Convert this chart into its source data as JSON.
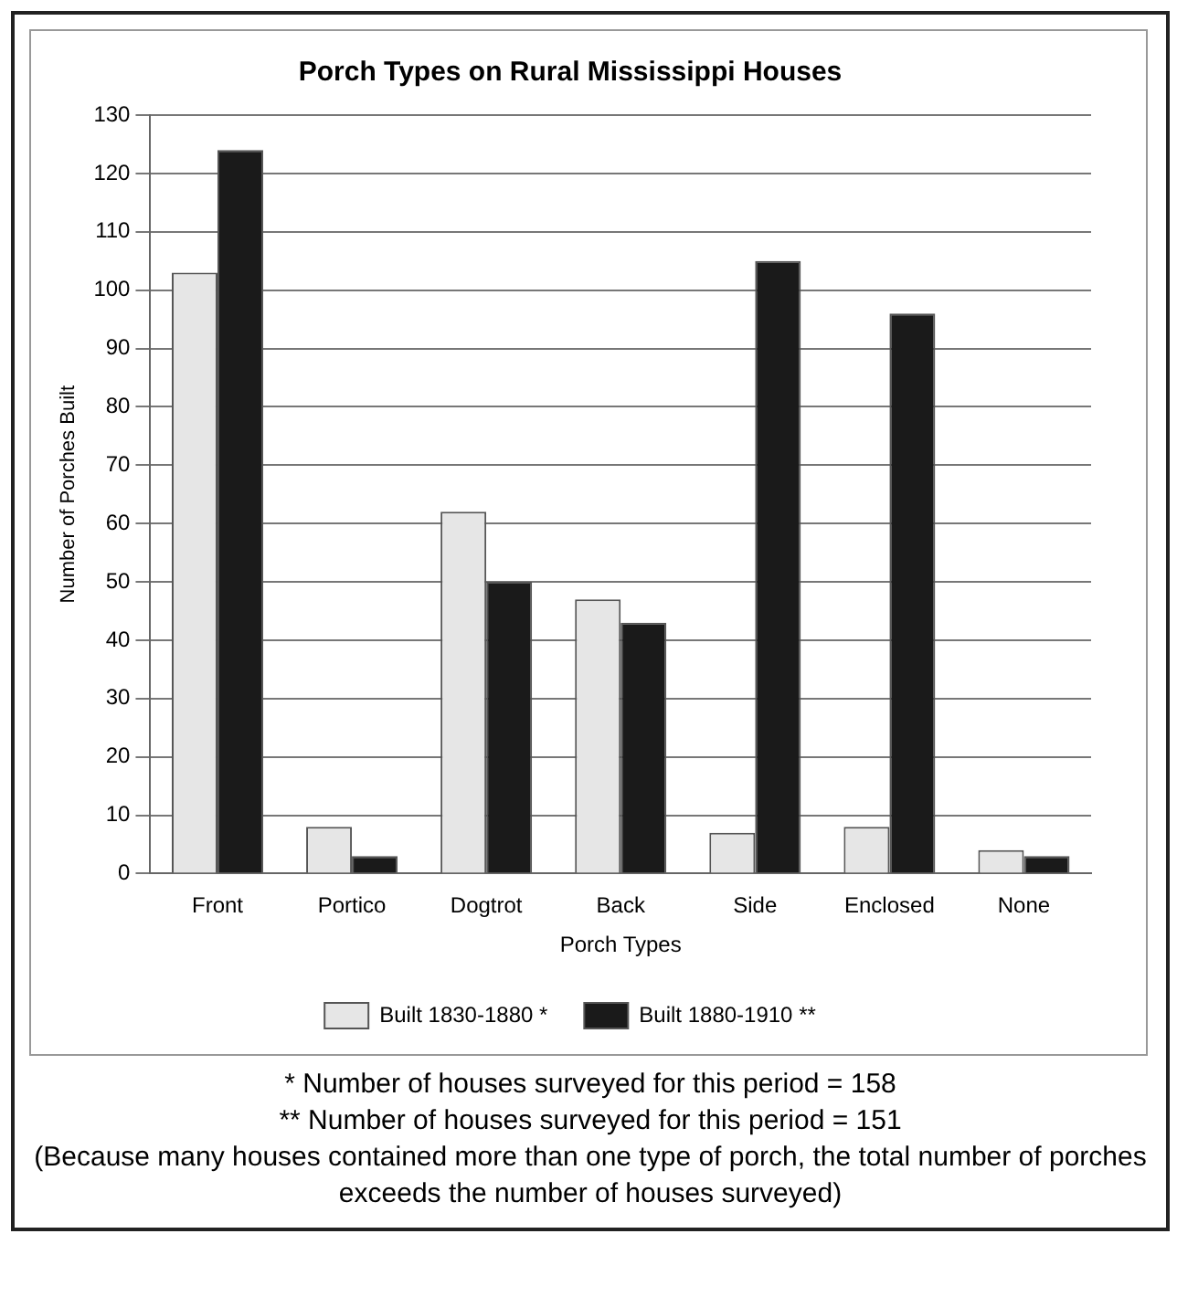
{
  "chart_data": {
    "type": "bar",
    "title": "Porch Types on Rural Mississippi Houses",
    "xlabel": "Porch Types",
    "ylabel": "Number of Porches Built",
    "categories": [
      "Front",
      "Portico",
      "Dogtrot",
      "Back",
      "Side",
      "Enclosed",
      "None"
    ],
    "series": [
      {
        "name": "Built 1830-1880 *",
        "color": "#e6e6e6",
        "values": [
          103,
          8,
          62,
          47,
          7,
          8,
          4
        ]
      },
      {
        "name": "Built 1880-1910 **",
        "color": "#1a1a1a",
        "values": [
          124,
          3,
          50,
          43,
          105,
          96,
          3
        ]
      }
    ],
    "ylim": [
      0,
      130
    ],
    "yticks": [
      0,
      10,
      20,
      30,
      40,
      50,
      60,
      70,
      80,
      90,
      100,
      110,
      120,
      130
    ],
    "grid": "y",
    "legend": "bottom",
    "annotations": [
      "* Number of houses surveyed for this period = 158",
      "** Number of houses surveyed for this period = 151",
      "(Because many houses contained more than one type of porch, the total number of porches exceeds the number of houses surveyed)"
    ]
  }
}
